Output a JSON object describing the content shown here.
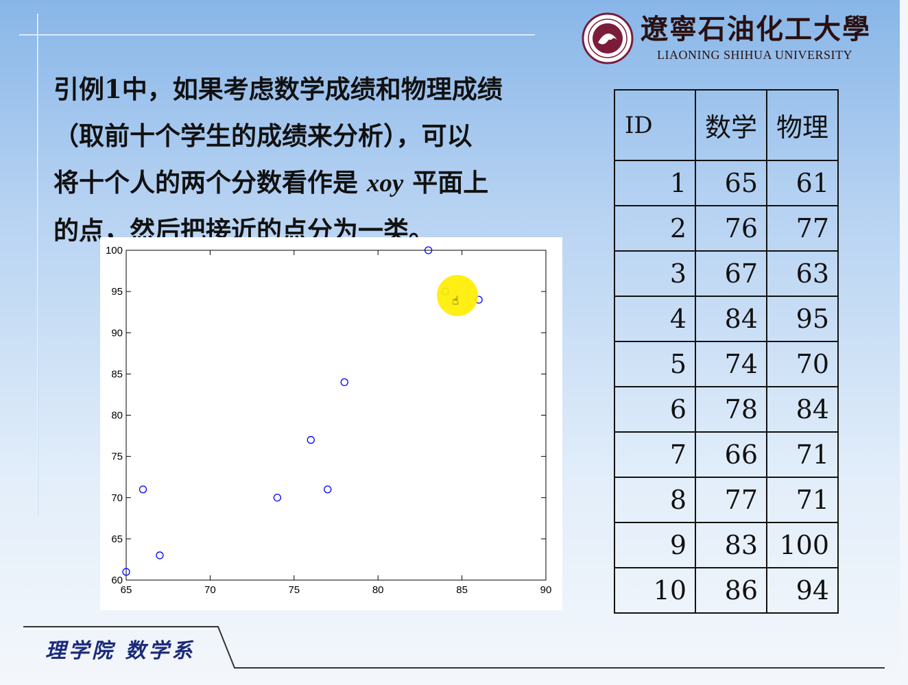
{
  "logo": {
    "name_cn": "遼寧石油化工大學",
    "name_en": "LIAONING SHIHUA UNIVERSITY"
  },
  "paragraph": {
    "line1": "引例1中，如果考虑数学成绩和物理成绩",
    "line2": "（取前十个学生的成绩来分析），可以",
    "line3_pre": "将十个人的两个分数看作是 ",
    "line3_var": "xoy",
    "line3_post": " 平面上",
    "line4": "的点，然后把接近的点分为一类。"
  },
  "table": {
    "headers": [
      "ID",
      "数学",
      "物理"
    ],
    "rows": [
      [
        "1",
        "65",
        "61"
      ],
      [
        "2",
        "76",
        "77"
      ],
      [
        "3",
        "67",
        "63"
      ],
      [
        "4",
        "84",
        "95"
      ],
      [
        "5",
        "74",
        "70"
      ],
      [
        "6",
        "78",
        "84"
      ],
      [
        "7",
        "66",
        "71"
      ],
      [
        "8",
        "77",
        "71"
      ],
      [
        "9",
        "83",
        "100"
      ],
      [
        "10",
        "86",
        "94"
      ]
    ]
  },
  "chart_data": {
    "type": "scatter",
    "title": "",
    "xlabel": "",
    "ylabel": "",
    "xlim": [
      65,
      90
    ],
    "ylim": [
      60,
      100
    ],
    "xticks": [
      65,
      70,
      75,
      80,
      85,
      90
    ],
    "yticks": [
      60,
      65,
      70,
      75,
      80,
      85,
      90,
      95,
      100
    ],
    "marker": "circle-open",
    "color": "#0000ff",
    "grid": false,
    "points": [
      {
        "x": 65,
        "y": 61
      },
      {
        "x": 76,
        "y": 77
      },
      {
        "x": 67,
        "y": 63
      },
      {
        "x": 84,
        "y": 95
      },
      {
        "x": 74,
        "y": 70
      },
      {
        "x": 78,
        "y": 84
      },
      {
        "x": 66,
        "y": 71
      },
      {
        "x": 77,
        "y": 71
      },
      {
        "x": 83,
        "y": 100
      },
      {
        "x": 86,
        "y": 94
      }
    ]
  },
  "footer": {
    "dept": "理学院 数学系"
  },
  "colors": {
    "marker": "#0000ff",
    "cursor_highlight": "#ffee00",
    "footer_text": "#1a2a7a"
  },
  "icons": {
    "cursor": "hand-pointer-icon"
  }
}
